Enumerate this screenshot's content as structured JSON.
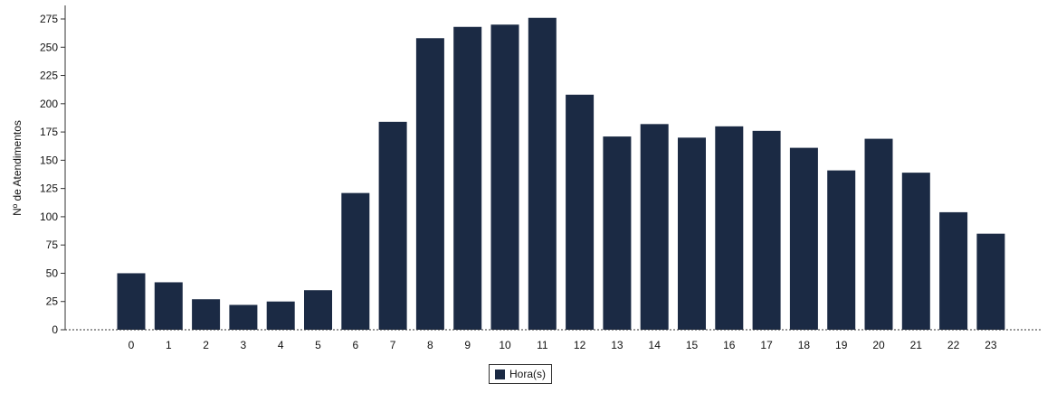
{
  "chart_data": {
    "type": "bar",
    "categories": [
      "0",
      "1",
      "2",
      "3",
      "4",
      "5",
      "6",
      "7",
      "8",
      "9",
      "10",
      "11",
      "12",
      "13",
      "14",
      "15",
      "16",
      "17",
      "18",
      "19",
      "20",
      "21",
      "22",
      "23"
    ],
    "series": [
      {
        "name": "Hora(s)",
        "values": [
          50,
          42,
          27,
          22,
          25,
          35,
          121,
          184,
          258,
          268,
          270,
          276,
          208,
          171,
          182,
          170,
          180,
          176,
          161,
          141,
          169,
          139,
          104,
          85
        ]
      }
    ],
    "title": "",
    "xlabel": "",
    "ylabel": "Nº de Atendimentos",
    "ylim": [
      0,
      275
    ],
    "yticks": [
      0,
      25,
      50,
      75,
      100,
      125,
      150,
      175,
      200,
      225,
      250,
      275
    ],
    "grid": false,
    "legend_position": "bottom-center",
    "bar_color": "#1b2a44"
  }
}
